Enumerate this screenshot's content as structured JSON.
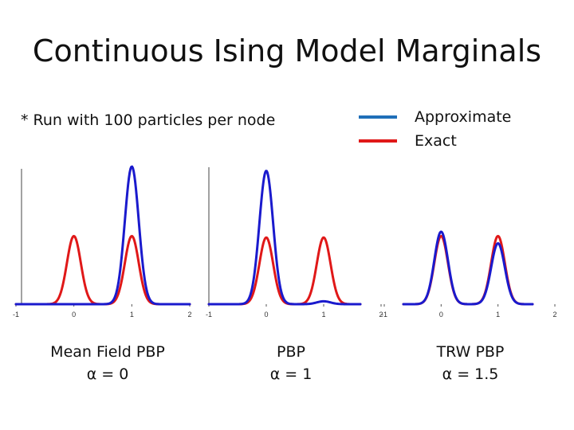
{
  "title": "Continuous Ising Model Marginals",
  "note": "* Run with 100 particles per node",
  "legend": [
    {
      "label": "Approximate",
      "color": "#1a1acd"
    },
    {
      "label": "Exact",
      "color": "#e01818"
    }
  ],
  "legend_line_colors": [
    "#1f6fb8",
    "#e01818"
  ],
  "panels": [
    {
      "caption_line1": "Mean Field PBP",
      "caption_line2": "α = 0"
    },
    {
      "caption_line1": "PBP",
      "caption_line2": "α = 1"
    },
    {
      "caption_line1": "TRW PBP",
      "caption_line2": "α = 1.5"
    }
  ],
  "chart_data": [
    {
      "type": "line",
      "xlim": [
        -1,
        2
      ],
      "ylim": [
        0,
        1
      ],
      "x_tick_labels": [
        "-1",
        "0",
        "1",
        "2"
      ],
      "series": [
        {
          "name": "Approximate",
          "color": "#1a1acd",
          "components": [
            {
              "mean": 0,
              "sd": 0.12,
              "height": 0.0
            },
            {
              "mean": 1,
              "sd": 0.12,
              "height": 0.95
            }
          ]
        },
        {
          "name": "Exact",
          "color": "#e01818",
          "components": [
            {
              "mean": 0,
              "sd": 0.12,
              "height": 0.47
            },
            {
              "mean": 1,
              "sd": 0.12,
              "height": 0.47
            }
          ]
        }
      ]
    },
    {
      "type": "line",
      "xlim": [
        -1,
        2
      ],
      "ylim": [
        0,
        1
      ],
      "x_tick_labels": [
        "-1",
        "0",
        "1",
        "2"
      ],
      "series": [
        {
          "name": "Approximate",
          "color": "#1a1acd",
          "components": [
            {
              "mean": 0,
              "sd": 0.12,
              "height": 0.92
            },
            {
              "mean": 1,
              "sd": 0.12,
              "height": 0.02
            }
          ]
        },
        {
          "name": "Exact",
          "color": "#e01818",
          "components": [
            {
              "mean": 0,
              "sd": 0.12,
              "height": 0.46
            },
            {
              "mean": 1,
              "sd": 0.12,
              "height": 0.46
            }
          ]
        }
      ]
    },
    {
      "type": "line",
      "xlim": [
        -1,
        2
      ],
      "ylim": [
        0,
        1
      ],
      "x_tick_labels": [
        "-1",
        "0",
        "1",
        "2"
      ],
      "series": [
        {
          "name": "Approximate",
          "color": "#1a1acd",
          "components": [
            {
              "mean": 0,
              "sd": 0.12,
              "height": 0.5
            },
            {
              "mean": 1,
              "sd": 0.12,
              "height": 0.42
            }
          ]
        },
        {
          "name": "Exact",
          "color": "#e01818",
          "components": [
            {
              "mean": 0,
              "sd": 0.12,
              "height": 0.47
            },
            {
              "mean": 1,
              "sd": 0.12,
              "height": 0.47
            }
          ]
        }
      ]
    }
  ]
}
